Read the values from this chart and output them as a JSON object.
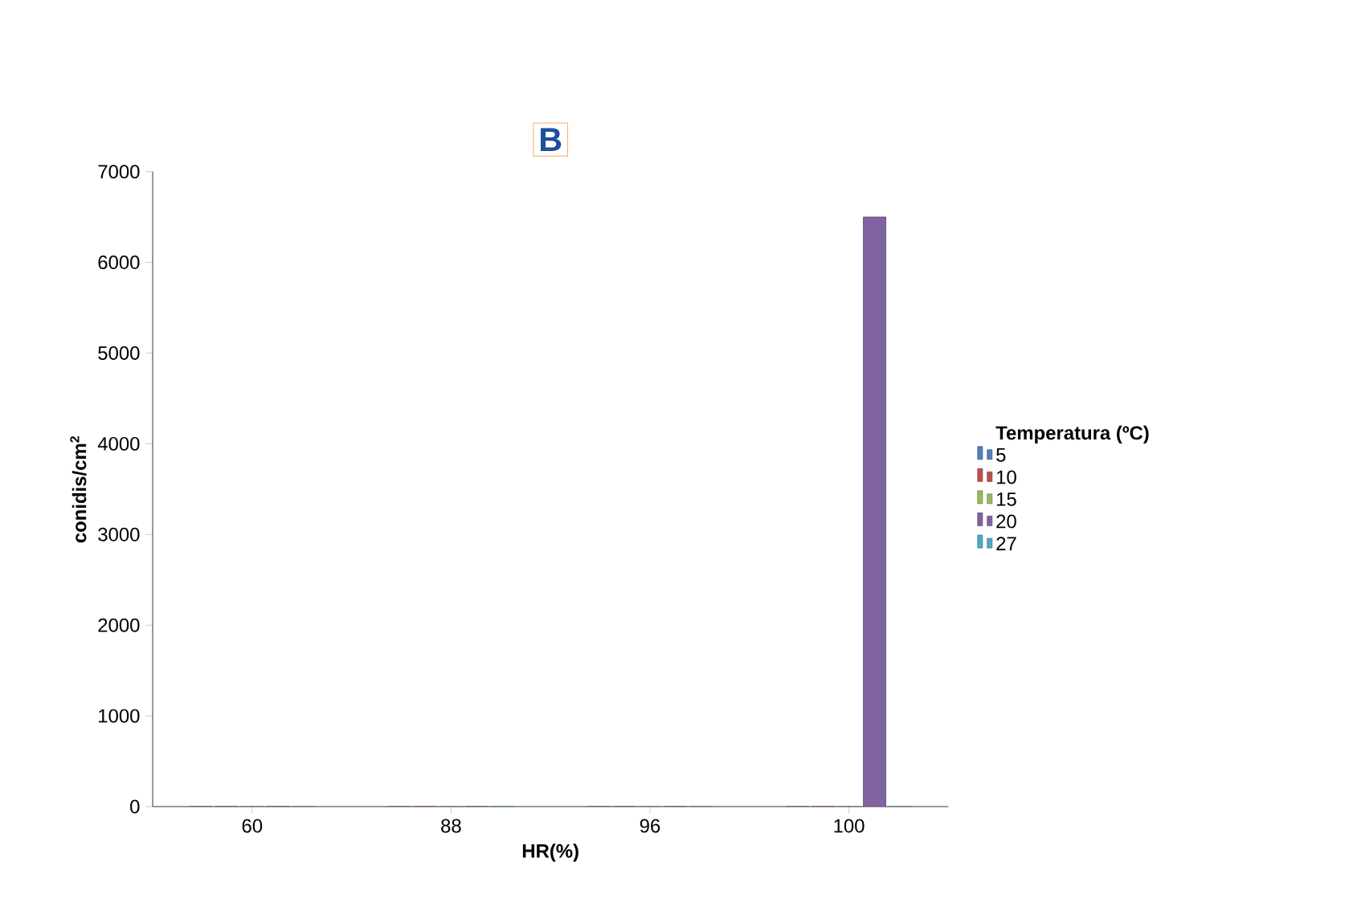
{
  "chart_data": {
    "type": "bar",
    "title": "B",
    "xlabel": "HR(%)",
    "ylabel": "conidis/cm$^{2}$",
    "legend_title": "Temperatura (ºC)",
    "categories": [
      "60",
      "88",
      "96",
      "100"
    ],
    "series": [
      {
        "name": "5",
        "color": "#4f81bd",
        "values": [
          0,
          0,
          0,
          0
        ]
      },
      {
        "name": "10",
        "color": "#c0504d",
        "values": [
          0,
          0,
          0,
          0
        ]
      },
      {
        "name": "15",
        "color": "#9bbb59",
        "values": [
          0,
          0,
          0,
          0
        ]
      },
      {
        "name": "20",
        "color": "#8064a2",
        "values": [
          0,
          0,
          0,
          6500
        ]
      },
      {
        "name": "27",
        "color": "#4bacc6",
        "values": [
          0,
          0,
          0,
          0
        ]
      }
    ],
    "ylim": [
      0,
      7000
    ],
    "yticks": [
      0,
      1000,
      2000,
      3000,
      4000,
      5000,
      6000,
      7000
    ],
    "legend": "right"
  }
}
